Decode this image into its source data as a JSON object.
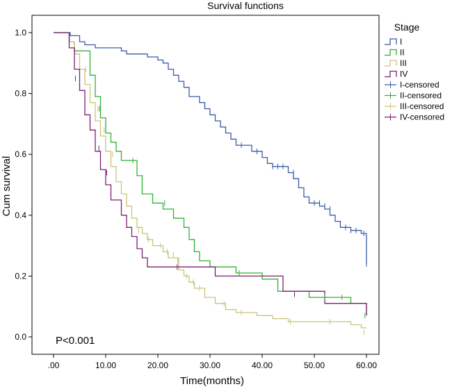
{
  "chart_data": {
    "type": "line",
    "step": true,
    "title": "Survival functions",
    "xlabel": "Time(months)",
    "ylabel": "Cum survival",
    "xlim": [
      0,
      60
    ],
    "ylim": [
      0,
      1
    ],
    "x_ticks": [
      0,
      10,
      20,
      30,
      40,
      50,
      60
    ],
    "x_tick_labels": [
      ".00",
      "10.00",
      "20.00",
      "30.00",
      "40.00",
      "50.00",
      "60.00"
    ],
    "y_ticks": [
      0,
      0.2,
      0.4,
      0.6,
      0.8,
      1.0
    ],
    "y_tick_labels": [
      "0.0",
      "0.2",
      "0.4",
      "0.6",
      "0.8",
      "1.0"
    ],
    "annotation": "P<0.001",
    "legend_title": "Stage",
    "legend_position": "right",
    "series": [
      {
        "name": "I",
        "censored_label": "I-censored",
        "color": "#3a5aa8",
        "points": [
          [
            0,
            1.0
          ],
          [
            3.2,
            1.0
          ],
          [
            3.2,
            0.99
          ],
          [
            5,
            0.99
          ],
          [
            5,
            0.97
          ],
          [
            6,
            0.97
          ],
          [
            6,
            0.96
          ],
          [
            8,
            0.96
          ],
          [
            8,
            0.95
          ],
          [
            13,
            0.95
          ],
          [
            13,
            0.94
          ],
          [
            14,
            0.94
          ],
          [
            14,
            0.93
          ],
          [
            18,
            0.93
          ],
          [
            18,
            0.92
          ],
          [
            20,
            0.92
          ],
          [
            20,
            0.91
          ],
          [
            21,
            0.91
          ],
          [
            21,
            0.9
          ],
          [
            22,
            0.9
          ],
          [
            22,
            0.88
          ],
          [
            23,
            0.88
          ],
          [
            23,
            0.86
          ],
          [
            24,
            0.86
          ],
          [
            24,
            0.84
          ],
          [
            25,
            0.84
          ],
          [
            25,
            0.82
          ],
          [
            26,
            0.82
          ],
          [
            26,
            0.79
          ],
          [
            28,
            0.79
          ],
          [
            28,
            0.77
          ],
          [
            29,
            0.77
          ],
          [
            29,
            0.75
          ],
          [
            30,
            0.75
          ],
          [
            30,
            0.73
          ],
          [
            31,
            0.73
          ],
          [
            31,
            0.71
          ],
          [
            32,
            0.71
          ],
          [
            32,
            0.69
          ],
          [
            33,
            0.69
          ],
          [
            33,
            0.67
          ],
          [
            34,
            0.67
          ],
          [
            34,
            0.65
          ],
          [
            35,
            0.65
          ],
          [
            35,
            0.63
          ],
          [
            38,
            0.63
          ],
          [
            38,
            0.61
          ],
          [
            40,
            0.61
          ],
          [
            40,
            0.59
          ],
          [
            41,
            0.59
          ],
          [
            41,
            0.57
          ],
          [
            42,
            0.57
          ],
          [
            42,
            0.56
          ],
          [
            45,
            0.56
          ],
          [
            45,
            0.54
          ],
          [
            46,
            0.54
          ],
          [
            46,
            0.52
          ],
          [
            47,
            0.52
          ],
          [
            47,
            0.49
          ],
          [
            48,
            0.49
          ],
          [
            48,
            0.46
          ],
          [
            49,
            0.46
          ],
          [
            49,
            0.44
          ],
          [
            51,
            0.44
          ],
          [
            51,
            0.43
          ],
          [
            52,
            0.43
          ],
          [
            52,
            0.42
          ],
          [
            53,
            0.42
          ],
          [
            53,
            0.4
          ],
          [
            54,
            0.4
          ],
          [
            54,
            0.38
          ],
          [
            55,
            0.38
          ],
          [
            55,
            0.36
          ],
          [
            57,
            0.36
          ],
          [
            57,
            0.35
          ],
          [
            59,
            0.35
          ],
          [
            59,
            0.34
          ],
          [
            60,
            0.34
          ],
          [
            60,
            0.24
          ]
        ],
        "censored": [
          [
            36,
            0.63
          ],
          [
            39,
            0.61
          ],
          [
            42,
            0.56
          ],
          [
            43,
            0.56
          ],
          [
            44,
            0.56
          ],
          [
            45,
            0.55
          ],
          [
            46,
            0.54
          ],
          [
            50,
            0.44
          ],
          [
            51,
            0.44
          ],
          [
            52,
            0.43
          ],
          [
            53,
            0.42
          ],
          [
            55,
            0.37
          ],
          [
            56,
            0.36
          ],
          [
            57,
            0.35
          ],
          [
            58,
            0.35
          ],
          [
            59.5,
            0.34
          ],
          [
            60,
            0.24
          ]
        ]
      },
      {
        "name": "II",
        "censored_label": "II-censored",
        "color": "#2eb135",
        "points": [
          [
            0,
            1.0
          ],
          [
            3,
            1.0
          ],
          [
            3,
            0.97
          ],
          [
            4,
            0.97
          ],
          [
            4,
            0.94
          ],
          [
            7,
            0.94
          ],
          [
            7,
            0.86
          ],
          [
            8,
            0.86
          ],
          [
            8,
            0.79
          ],
          [
            9,
            0.79
          ],
          [
            9,
            0.72
          ],
          [
            10,
            0.72
          ],
          [
            10,
            0.67
          ],
          [
            11,
            0.67
          ],
          [
            11,
            0.64
          ],
          [
            12,
            0.64
          ],
          [
            12,
            0.61
          ],
          [
            13,
            0.61
          ],
          [
            13,
            0.58
          ],
          [
            16,
            0.58
          ],
          [
            16,
            0.53
          ],
          [
            17,
            0.53
          ],
          [
            17,
            0.47
          ],
          [
            19,
            0.47
          ],
          [
            19,
            0.44
          ],
          [
            21,
            0.44
          ],
          [
            21,
            0.42
          ],
          [
            23,
            0.42
          ],
          [
            23,
            0.39
          ],
          [
            25,
            0.39
          ],
          [
            25,
            0.36
          ],
          [
            26,
            0.36
          ],
          [
            26,
            0.32
          ],
          [
            27,
            0.32
          ],
          [
            27,
            0.28
          ],
          [
            28,
            0.28
          ],
          [
            28,
            0.25
          ],
          [
            30,
            0.25
          ],
          [
            30,
            0.23
          ],
          [
            35,
            0.23
          ],
          [
            35,
            0.21
          ],
          [
            40,
            0.21
          ],
          [
            40,
            0.19
          ],
          [
            43,
            0.19
          ],
          [
            43,
            0.15
          ],
          [
            49,
            0.15
          ],
          [
            49,
            0.13
          ],
          [
            57,
            0.13
          ],
          [
            57,
            0.11
          ],
          [
            60,
            0.11
          ],
          [
            60,
            0.07
          ]
        ],
        "censored": [
          [
            8.8,
            0.75
          ],
          [
            15.2,
            0.58
          ],
          [
            21.3,
            0.44
          ],
          [
            35.6,
            0.21
          ],
          [
            52,
            0.13
          ],
          [
            55.3,
            0.13
          ],
          [
            59.7,
            0.07
          ]
        ]
      },
      {
        "name": "III",
        "censored_label": "III-censored",
        "color": "#c9c47a",
        "points": [
          [
            0,
            1.0
          ],
          [
            3,
            1.0
          ],
          [
            3,
            0.97
          ],
          [
            4,
            0.97
          ],
          [
            4,
            0.93
          ],
          [
            5,
            0.93
          ],
          [
            5,
            0.88
          ],
          [
            6,
            0.88
          ],
          [
            6,
            0.83
          ],
          [
            7,
            0.83
          ],
          [
            7,
            0.77
          ],
          [
            8,
            0.77
          ],
          [
            8,
            0.71
          ],
          [
            9,
            0.71
          ],
          [
            9,
            0.66
          ],
          [
            10,
            0.66
          ],
          [
            10,
            0.61
          ],
          [
            11,
            0.61
          ],
          [
            11,
            0.56
          ],
          [
            12,
            0.56
          ],
          [
            12,
            0.51
          ],
          [
            13,
            0.51
          ],
          [
            13,
            0.47
          ],
          [
            14,
            0.47
          ],
          [
            14,
            0.43
          ],
          [
            15,
            0.43
          ],
          [
            15,
            0.39
          ],
          [
            16,
            0.39
          ],
          [
            16,
            0.36
          ],
          [
            17,
            0.36
          ],
          [
            17,
            0.34
          ],
          [
            18,
            0.34
          ],
          [
            18,
            0.32
          ],
          [
            19,
            0.32
          ],
          [
            19,
            0.3
          ],
          [
            21,
            0.3
          ],
          [
            21,
            0.28
          ],
          [
            22,
            0.28
          ],
          [
            22,
            0.26
          ],
          [
            24,
            0.26
          ],
          [
            24,
            0.22
          ],
          [
            25,
            0.22
          ],
          [
            25,
            0.2
          ],
          [
            26,
            0.2
          ],
          [
            26,
            0.18
          ],
          [
            27,
            0.18
          ],
          [
            27,
            0.16
          ],
          [
            29,
            0.16
          ],
          [
            29,
            0.13
          ],
          [
            31,
            0.13
          ],
          [
            31,
            0.11
          ],
          [
            33,
            0.11
          ],
          [
            33,
            0.09
          ],
          [
            35,
            0.09
          ],
          [
            35,
            0.08
          ],
          [
            39,
            0.08
          ],
          [
            39,
            0.07
          ],
          [
            42,
            0.07
          ],
          [
            42,
            0.06
          ],
          [
            45,
            0.06
          ],
          [
            45,
            0.05
          ],
          [
            57,
            0.05
          ],
          [
            57,
            0.04
          ],
          [
            59,
            0.04
          ],
          [
            59,
            0.03
          ],
          [
            60,
            0.03
          ]
        ],
        "censored": [
          [
            6.2,
            0.88
          ],
          [
            8.5,
            0.75
          ],
          [
            9.7,
            0.68
          ],
          [
            11.3,
            0.6
          ],
          [
            15,
            0.4
          ],
          [
            16.3,
            0.35
          ],
          [
            18.2,
            0.32
          ],
          [
            20.5,
            0.3
          ],
          [
            21.8,
            0.28
          ],
          [
            23,
            0.27
          ],
          [
            23.8,
            0.25
          ],
          [
            25.5,
            0.2
          ],
          [
            26.8,
            0.18
          ],
          [
            28,
            0.16
          ],
          [
            32.7,
            0.11
          ],
          [
            36,
            0.08
          ],
          [
            45.4,
            0.05
          ],
          [
            53,
            0.05
          ],
          [
            59.5,
            0.015
          ]
        ]
      },
      {
        "name": "IV",
        "censored_label": "IV-censored",
        "color": "#7d1e72",
        "points": [
          [
            0,
            1.0
          ],
          [
            3,
            1.0
          ],
          [
            3,
            0.95
          ],
          [
            4,
            0.95
          ],
          [
            4,
            0.88
          ],
          [
            5,
            0.88
          ],
          [
            5,
            0.81
          ],
          [
            6,
            0.81
          ],
          [
            6,
            0.73
          ],
          [
            7,
            0.73
          ],
          [
            7,
            0.68
          ],
          [
            8,
            0.68
          ],
          [
            8,
            0.61
          ],
          [
            9,
            0.61
          ],
          [
            9,
            0.55
          ],
          [
            10,
            0.55
          ],
          [
            10,
            0.5
          ],
          [
            11,
            0.5
          ],
          [
            11,
            0.45
          ],
          [
            13,
            0.45
          ],
          [
            13,
            0.4
          ],
          [
            14,
            0.4
          ],
          [
            14,
            0.36
          ],
          [
            15,
            0.36
          ],
          [
            15,
            0.33
          ],
          [
            16,
            0.33
          ],
          [
            16,
            0.29
          ],
          [
            17,
            0.29
          ],
          [
            17,
            0.26
          ],
          [
            18,
            0.26
          ],
          [
            18,
            0.23
          ],
          [
            31,
            0.23
          ],
          [
            31,
            0.2
          ],
          [
            44,
            0.2
          ],
          [
            44,
            0.15
          ],
          [
            52,
            0.15
          ],
          [
            52,
            0.11
          ],
          [
            60,
            0.11
          ],
          [
            60,
            0.07
          ]
        ],
        "censored": [
          [
            4.2,
            0.85
          ],
          [
            8.7,
            0.62
          ],
          [
            10.2,
            0.54
          ],
          [
            23.7,
            0.23
          ],
          [
            46.2,
            0.14
          ]
        ]
      }
    ]
  }
}
